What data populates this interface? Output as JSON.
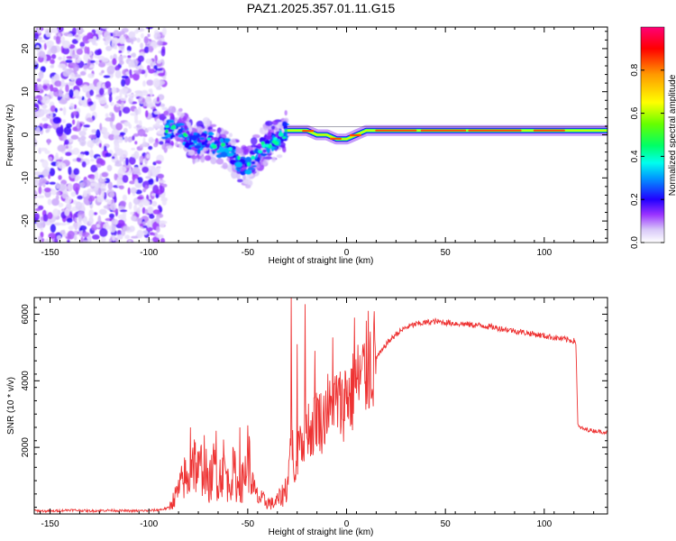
{
  "title": "PAZ1.2025.357.01.11.G15",
  "chart_data": [
    {
      "type": "heatmap",
      "title": "PAZ1.2025.357.01.11.G15",
      "xlabel": "Height of straight line (km)",
      "ylabel": "Frequency (Hz)",
      "xlim": [
        -158,
        132
      ],
      "ylim": [
        -25,
        25
      ],
      "xticks": [
        -150,
        -100,
        -50,
        0,
        50,
        100
      ],
      "yticks": [
        -20,
        -10,
        0,
        10,
        20
      ],
      "colorbar": {
        "label": "Normalized spectral amplitude",
        "range": [
          0,
          1
        ],
        "ticks": [
          0.0,
          0.2,
          0.4,
          0.6,
          0.8
        ],
        "tick_labels": [
          "0.0",
          "0.2",
          "0.4",
          "0.6",
          "0.8"
        ]
      },
      "regions": [
        {
          "name": "noise",
          "x": [
            -158,
            -92
          ],
          "y": [
            -25,
            25
          ],
          "amplitude": 0.12
        },
        {
          "name": "scatter",
          "x": [
            -92,
            -30
          ],
          "y": [
            -15,
            11
          ],
          "amplitude": 0.25
        },
        {
          "name": "signal-line",
          "x": [
            -30,
            132
          ],
          "y": [
            -2,
            2
          ],
          "amplitude": 0.85
        }
      ],
      "ridge_track": [
        {
          "x": -92,
          "y": 1
        },
        {
          "x": -85,
          "y": 2
        },
        {
          "x": -80,
          "y": -1
        },
        {
          "x": -75,
          "y": -2
        },
        {
          "x": -70,
          "y": -1
        },
        {
          "x": -65,
          "y": -3
        },
        {
          "x": -60,
          "y": -3
        },
        {
          "x": -55,
          "y": -6
        },
        {
          "x": -50,
          "y": -8
        },
        {
          "x": -45,
          "y": -4
        },
        {
          "x": -40,
          "y": -2
        },
        {
          "x": -35,
          "y": -1
        },
        {
          "x": -30,
          "y": 1
        },
        {
          "x": -25,
          "y": 1
        },
        {
          "x": -20,
          "y": 1
        },
        {
          "x": -15,
          "y": 0
        },
        {
          "x": -10,
          "y": 0
        },
        {
          "x": -5,
          "y": -1
        },
        {
          "x": 0,
          "y": -1
        },
        {
          "x": 5,
          "y": 0
        },
        {
          "x": 10,
          "y": 1
        },
        {
          "x": 20,
          "y": 1
        },
        {
          "x": 50,
          "y": 1
        },
        {
          "x": 90,
          "y": 1
        },
        {
          "x": 132,
          "y": 1
        }
      ]
    },
    {
      "type": "line",
      "xlabel": "Height of straight line (km)",
      "ylabel": "SNR (10 * v/v)",
      "xlim": [
        -158,
        132
      ],
      "ylim": [
        0,
        6500
      ],
      "xticks": [
        -150,
        -100,
        -50,
        0,
        50,
        100
      ],
      "yticks": [
        2000,
        4000,
        6000
      ],
      "series": [
        {
          "name": "SNR",
          "color": "#ee3333",
          "x": [
            -158,
            -150,
            -140,
            -130,
            -120,
            -110,
            -100,
            -95,
            -90,
            -85,
            -82,
            -80,
            -78,
            -75,
            -72,
            -70,
            -67,
            -65,
            -62,
            -60,
            -57,
            -55,
            -52,
            -50,
            -47,
            -45,
            -42,
            -40,
            -37,
            -35,
            -32,
            -30,
            -29,
            -28,
            -27,
            -26,
            -25,
            -24,
            -22,
            -20,
            -18,
            -15,
            -12,
            -10,
            -8,
            -5,
            -2,
            0,
            2,
            5,
            8,
            10,
            12,
            15,
            18,
            20,
            25,
            30,
            35,
            40,
            45,
            50,
            60,
            70,
            80,
            90,
            100,
            110,
            115,
            116,
            117,
            118,
            120,
            125,
            132
          ],
          "y": [
            100,
            80,
            120,
            90,
            110,
            90,
            100,
            120,
            180,
            700,
            1100,
            900,
            1800,
            1200,
            1600,
            800,
            1400,
            1000,
            1500,
            900,
            1300,
            800,
            1000,
            1800,
            700,
            500,
            400,
            350,
            300,
            400,
            600,
            900,
            1500,
            2500,
            1800,
            900,
            1500,
            2600,
            2100,
            2800,
            2400,
            3000,
            2700,
            3300,
            3000,
            3400,
            3200,
            3700,
            3500,
            3900,
            4100,
            4300,
            4500,
            4700,
            4900,
            5100,
            5400,
            5600,
            5700,
            5750,
            5780,
            5750,
            5700,
            5650,
            5550,
            5450,
            5350,
            5250,
            5200,
            5150,
            2650,
            2600,
            2550,
            2500,
            2450
          ]
        }
      ],
      "spikes": [
        {
          "x": -28,
          "y": 6500
        },
        {
          "x": -21,
          "y": 6300
        },
        {
          "x": -25,
          "y": 5100
        },
        {
          "x": -79,
          "y": 2600
        },
        {
          "x": -66,
          "y": 2500
        },
        {
          "x": -54,
          "y": 2600
        },
        {
          "x": -16,
          "y": 4900
        },
        {
          "x": -7,
          "y": 5300
        },
        {
          "x": 4,
          "y": 5900
        },
        {
          "x": 11,
          "y": 6100
        }
      ]
    }
  ]
}
